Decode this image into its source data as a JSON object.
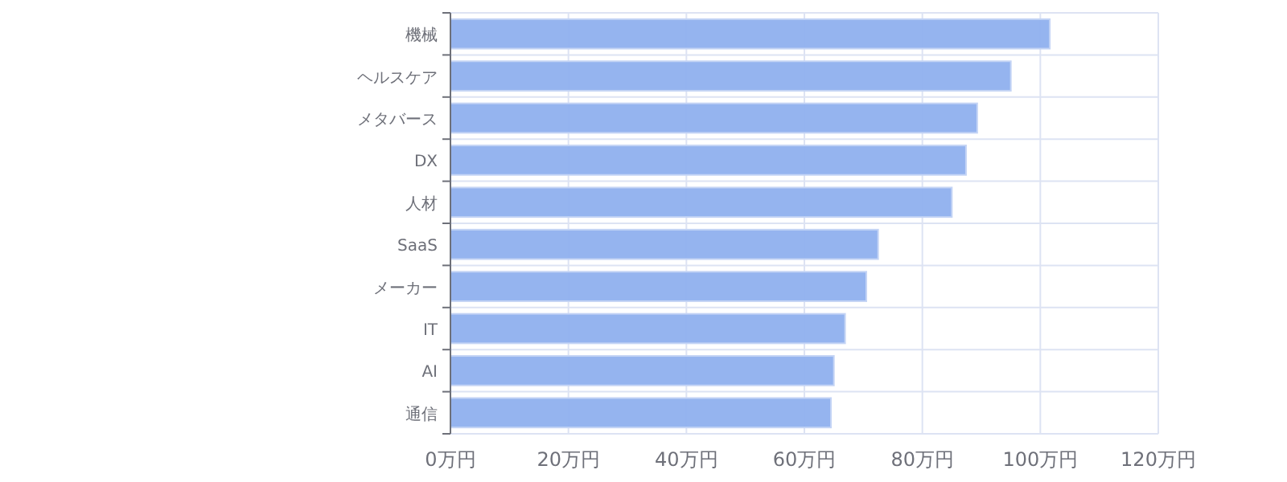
{
  "chart_data": {
    "type": "bar",
    "orientation": "horizontal",
    "categories": [
      "機械",
      "ヘルスケア",
      "メタバース",
      "DX",
      "人材",
      "SaaS",
      "メーカー",
      "IT",
      "AI",
      "通信"
    ],
    "values": [
      101.6,
      95.0,
      89.3,
      87.4,
      85.0,
      72.5,
      70.5,
      66.9,
      65.0,
      64.5
    ],
    "color": "#8fb0ee",
    "xlim": [
      0,
      120
    ],
    "xticks": [
      {
        "value": 0,
        "label": "0万円"
      },
      {
        "value": 20,
        "label": "20万円"
      },
      {
        "value": 40,
        "label": "40万円"
      },
      {
        "value": 60,
        "label": "60万円"
      },
      {
        "value": 80,
        "label": "80万円"
      },
      {
        "value": 100,
        "label": "100万円"
      },
      {
        "value": 120,
        "label": "120万円"
      }
    ],
    "grid": true
  }
}
